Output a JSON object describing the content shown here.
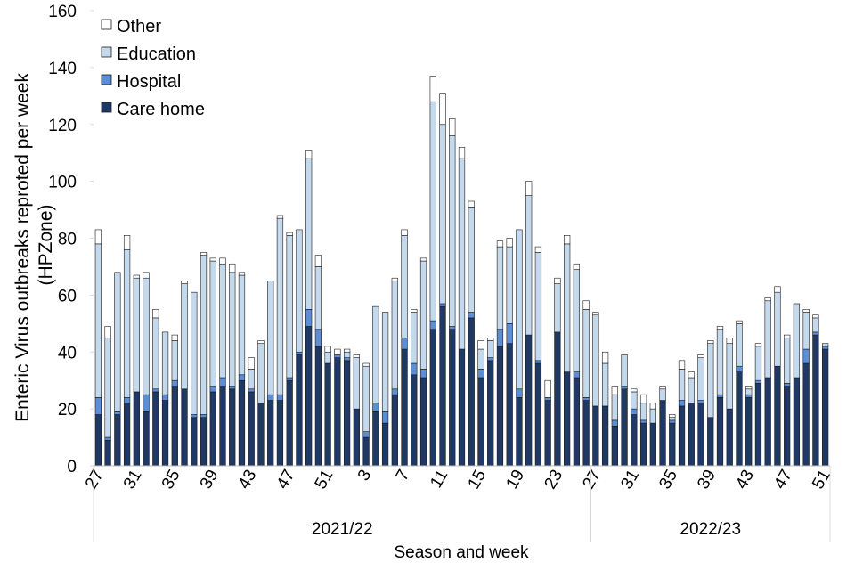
{
  "chart_data": {
    "type": "bar",
    "stacked": true,
    "title": "",
    "xlabel": "Season and week",
    "ylabel": "Enteric Virus outbreaks reproted per week (HPZone)",
    "ylabel_lines": [
      "Enteric Virus outbreaks reproted per week",
      "(HPZone)"
    ],
    "ylim": [
      0,
      160
    ],
    "yticks": [
      0,
      20,
      40,
      60,
      80,
      100,
      120,
      140,
      160
    ],
    "grid": false,
    "legend_position": "top-left",
    "weeks": [
      27,
      28,
      29,
      30,
      31,
      32,
      33,
      34,
      35,
      36,
      37,
      38,
      39,
      40,
      41,
      42,
      43,
      44,
      45,
      46,
      47,
      48,
      49,
      50,
      51,
      52,
      1,
      2,
      3,
      4,
      5,
      6,
      7,
      8,
      9,
      10,
      11,
      12,
      13,
      14,
      15,
      16,
      17,
      18,
      19,
      20,
      21,
      22,
      23,
      24,
      25,
      26,
      27,
      28,
      29,
      30,
      31,
      32,
      33,
      34,
      35,
      36,
      37,
      38,
      39,
      40,
      41,
      42,
      43,
      44,
      45,
      46,
      47,
      48,
      49,
      50,
      51
    ],
    "tick_labels": [
      "27",
      "31",
      "35",
      "39",
      "43",
      "47",
      "51",
      "3",
      "7",
      "11",
      "15",
      "19",
      "23",
      "27",
      "31",
      "35",
      "39",
      "43",
      "47",
      "51"
    ],
    "seasons": [
      {
        "label": "2021/22",
        "start_index": 0,
        "count": 52
      },
      {
        "label": "2022/23",
        "start_index": 52,
        "count": 25
      }
    ],
    "series": [
      {
        "name": "Care home",
        "color": "#1f3864",
        "values": [
          18,
          9,
          18,
          22,
          26,
          19,
          26,
          23,
          28,
          27,
          17,
          17,
          26,
          28,
          27,
          30,
          26,
          22,
          23,
          23,
          30,
          39,
          49,
          42,
          36,
          38,
          37,
          20,
          10,
          19,
          15,
          25,
          41,
          32,
          31,
          48,
          56,
          48,
          41,
          52,
          31,
          37,
          42,
          43,
          24,
          46,
          36,
          23,
          47,
          33,
          31,
          23,
          21,
          21,
          14,
          27,
          18,
          15,
          15,
          23,
          15,
          21,
          22,
          22,
          17,
          24,
          20,
          33,
          24,
          29,
          31,
          35,
          28,
          31,
          36,
          46,
          41
        ]
      },
      {
        "name": "Hospital",
        "color": "#5b8ed6",
        "values": [
          6,
          1,
          1,
          2,
          0,
          6,
          1,
          2,
          2,
          0,
          1,
          1,
          2,
          3,
          1,
          2,
          1,
          0,
          2,
          2,
          1,
          1,
          6,
          6,
          0,
          1,
          1,
          0,
          2,
          3,
          4,
          2,
          4,
          4,
          3,
          3,
          1,
          1,
          0,
          2,
          3,
          1,
          6,
          7,
          3,
          0,
          1,
          1,
          0,
          0,
          2,
          1,
          0,
          0,
          2,
          1,
          2,
          1,
          0,
          0,
          1,
          2,
          0,
          1,
          0,
          1,
          0,
          2,
          1,
          1,
          0,
          0,
          1,
          0,
          5,
          1,
          1
        ]
      },
      {
        "name": "Education",
        "color": "#c5d9ed",
        "values": [
          54,
          35,
          49,
          52,
          40,
          41,
          25,
          22,
          14,
          37,
          43,
          56,
          44,
          40,
          40,
          35,
          7,
          21,
          40,
          62,
          50,
          43,
          53,
          22,
          4,
          0,
          2,
          18,
          23,
          34,
          35,
          38,
          36,
          18,
          38,
          77,
          63,
          67,
          67,
          37,
          7,
          6,
          29,
          27,
          56,
          49,
          38,
          0,
          17,
          45,
          36,
          31,
          32,
          15,
          9,
          11,
          6,
          6,
          5,
          4,
          1,
          11,
          9,
          15,
          26,
          23,
          23,
          15,
          2,
          12,
          27,
          26,
          16,
          26,
          13,
          5,
          1
        ]
      },
      {
        "name": "Other",
        "color": "#ffffff",
        "values": [
          5,
          4,
          0,
          5,
          1,
          2,
          3,
          0,
          2,
          1,
          0,
          1,
          1,
          2,
          3,
          1,
          4,
          1,
          0,
          1,
          1,
          0,
          3,
          4,
          2,
          2,
          1,
          1,
          1,
          0,
          0,
          1,
          2,
          1,
          1,
          9,
          11,
          6,
          4,
          2,
          3,
          1,
          2,
          3,
          0,
          5,
          2,
          6,
          2,
          3,
          2,
          3,
          1,
          4,
          3,
          0,
          1,
          3,
          2,
          1,
          1,
          3,
          2,
          1,
          1,
          1,
          2,
          1,
          1,
          1,
          1,
          2,
          1,
          0,
          1,
          1,
          0
        ]
      }
    ],
    "legend_order": [
      "Other",
      "Education",
      "Hospital",
      "Care home"
    ]
  }
}
